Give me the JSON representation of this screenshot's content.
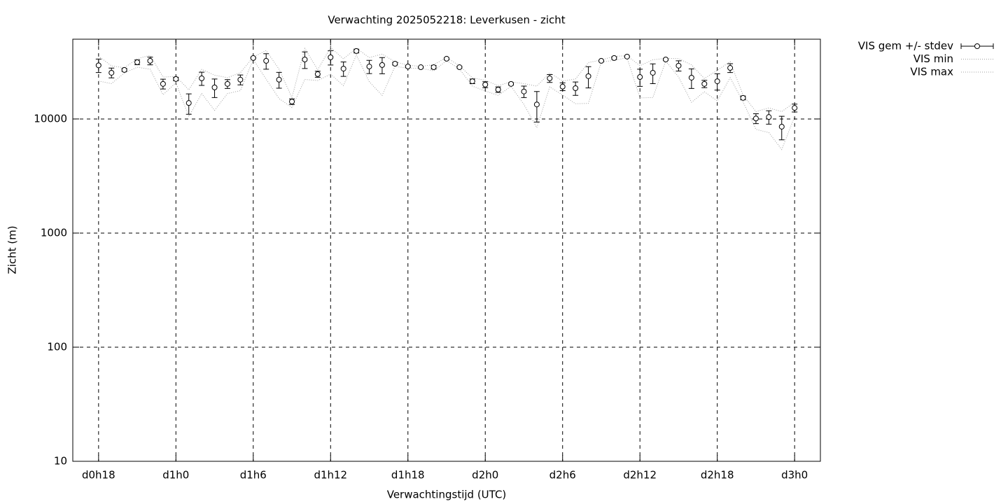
{
  "chart_data": {
    "type": "errorbar",
    "title": "Verwachting 2025052218: Leverkusen - zicht",
    "xlabel": "Verwachtingstijd (UTC)",
    "ylabel": "Zicht (m)",
    "log_y": true,
    "grid": true,
    "legend": "outside-top-right",
    "x": [
      18,
      19,
      20,
      21,
      22,
      23,
      24,
      25,
      26,
      27,
      28,
      29,
      30,
      31,
      32,
      33,
      34,
      35,
      36,
      37,
      38,
      39,
      40,
      41,
      42,
      43,
      44,
      45,
      46,
      47,
      48,
      49,
      50,
      51,
      52,
      53,
      54,
      55,
      56,
      57,
      58,
      59,
      60,
      61,
      62,
      63,
      64,
      65,
      66,
      67,
      68,
      69,
      70,
      71,
      72
    ],
    "xlim": [
      16,
      74
    ],
    "xticks": [
      {
        "value": 18,
        "label": "d0h18"
      },
      {
        "value": 24,
        "label": "d1h0"
      },
      {
        "value": 30,
        "label": "d1h6"
      },
      {
        "value": 36,
        "label": "d1h12"
      },
      {
        "value": 42,
        "label": "d1h18"
      },
      {
        "value": 48,
        "label": "d2h0"
      },
      {
        "value": 54,
        "label": "d2h6"
      },
      {
        "value": 60,
        "label": "d2h12"
      },
      {
        "value": 66,
        "label": "d2h18"
      },
      {
        "value": 72,
        "label": "d3h0"
      }
    ],
    "ylim": [
      10,
      50000
    ],
    "yticks": [
      10,
      100,
      1000,
      10000
    ],
    "series": [
      {
        "name": "VIS gem +/- stdev",
        "color": "#000000",
        "values": [
          29500,
          25400,
          26900,
          31400,
          32300,
          20300,
          22400,
          13800,
          22700,
          18900,
          20300,
          22100,
          34200,
          32300,
          22100,
          14200,
          33200,
          24700,
          34700,
          27600,
          39400,
          28800,
          29700,
          30500,
          28800,
          28400,
          28400,
          33700,
          28400,
          21400,
          20000,
          18100,
          20300,
          17400,
          13400,
          22700,
          19200,
          18600,
          23700,
          32300,
          34200,
          35200,
          23300,
          25400,
          33200,
          29300,
          23000,
          20300,
          21400,
          28000,
          15300,
          10100,
          10400,
          8560,
          12500
        ],
        "errors": [
          4000,
          2500,
          800,
          1500,
          2500,
          2000,
          800,
          2800,
          3000,
          3500,
          1800,
          2200,
          500,
          5000,
          3500,
          800,
          5500,
          1500,
          5000,
          4000,
          1500,
          3800,
          4800,
          800,
          500,
          300,
          1000,
          600,
          500,
          1000,
          1200,
          1000,
          500,
          2000,
          4000,
          1800,
          1500,
          2500,
          5000,
          400,
          800,
          400,
          4000,
          5000,
          500,
          3000,
          4500,
          1500,
          3500,
          2500,
          600,
          1000,
          1400,
          2000,
          1000
        ]
      },
      {
        "name": "VIS min",
        "color": "#a0a0a0",
        "values": [
          21500,
          20400,
          25300,
          28400,
          27300,
          16300,
          20800,
          10500,
          16700,
          11900,
          16700,
          17700,
          33200,
          22300,
          15100,
          12600,
          22200,
          21700,
          24700,
          19600,
          36400,
          21200,
          16100,
          28900,
          27800,
          27800,
          26400,
          32500,
          27400,
          19400,
          17600,
          16100,
          19300,
          13400,
          8400,
          19100,
          16200,
          13600,
          13700,
          31500,
          32600,
          34400,
          15300,
          15400,
          32200,
          23300,
          14000,
          17300,
          14400,
          23000,
          14100,
          8100,
          7600,
          5400,
          10500
        ]
      },
      {
        "name": "VIS max",
        "color": "#a0a0a0",
        "values": [
          35500,
          29200,
          28100,
          33700,
          36100,
          23300,
          23600,
          18000,
          27200,
          24200,
          23000,
          25400,
          34900,
          39800,
          27300,
          15400,
          41500,
          27000,
          42200,
          33600,
          41700,
          34500,
          37000,
          31700,
          29600,
          28900,
          29900,
          34600,
          29200,
          22900,
          21800,
          19600,
          21100,
          20400,
          19400,
          25400,
          21500,
          22400,
          31200,
          32900,
          35400,
          35800,
          29300,
          33000,
          34000,
          33800,
          29800,
          22600,
          26700,
          31800,
          16200,
          11600,
          12500,
          11600,
          14000
        ]
      }
    ]
  }
}
